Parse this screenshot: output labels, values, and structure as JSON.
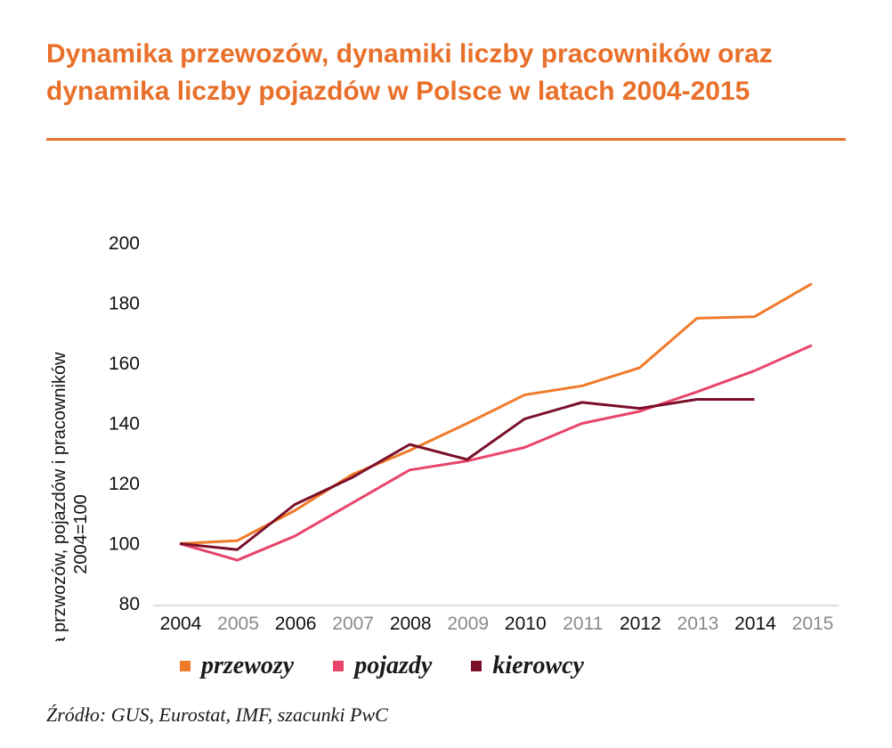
{
  "title": "Dynamika przewozów, dynamiki liczby pracowników oraz dynamika liczby pojazdów w Polsce w latach 2004-2015",
  "source": "Źródło: GUS, Eurostat, IMF, szacunki PwC",
  "colors": {
    "accent": "#e8702a",
    "przewozy": "#f07a2a",
    "pojazdy": "#e8466b",
    "kierowcy": "#7a0f2a",
    "tick_dark": "#111111",
    "tick_light": "#8a8a8a"
  },
  "chart_data": {
    "type": "line",
    "title": "Dynamika przewozów, dynamiki liczby pracowników oraz dynamika liczby pojazdów w Polsce w latach 2004-2015",
    "xlabel": "",
    "ylabel_lines": [
      "Dynamika przwozów, pojazdów i pracowników",
      "2004=100"
    ],
    "categories": [
      "2004",
      "2005",
      "2006",
      "2007",
      "2008",
      "2009",
      "2010",
      "2011",
      "2012",
      "2013",
      "2014",
      "2015"
    ],
    "category_style": [
      "dark",
      "light",
      "dark",
      "light",
      "dark",
      "light",
      "dark",
      "light",
      "dark",
      "light",
      "dark",
      "light"
    ],
    "y_ticks": [
      80,
      100,
      120,
      140,
      160,
      180,
      200
    ],
    "ylim": [
      80,
      200
    ],
    "grid": false,
    "legend_position": "bottom",
    "series": [
      {
        "name": "przewozy",
        "color_key": "przewozy",
        "values": [
          100,
          101,
          111,
          123,
          131,
          140,
          149.5,
          152.5,
          158.5,
          175,
          175.5,
          186.5
        ]
      },
      {
        "name": "pojazdy",
        "color_key": "pojazdy",
        "values": [
          100,
          94.5,
          102.5,
          113.5,
          124.5,
          127.5,
          132,
          140,
          144,
          150.5,
          157.5,
          166
        ]
      },
      {
        "name": "kierowcy",
        "color_key": "kierowcy",
        "values": [
          100,
          98,
          113,
          122,
          133,
          128,
          141.5,
          147,
          145,
          148,
          148,
          null
        ]
      }
    ]
  }
}
